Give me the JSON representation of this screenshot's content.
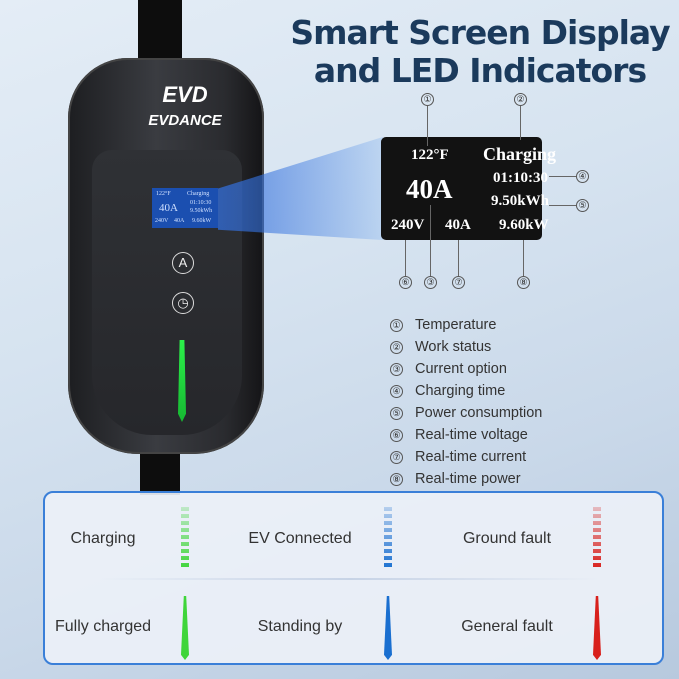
{
  "title": {
    "line1": "Smart Screen Display",
    "line2": "and  LED Indicators"
  },
  "device": {
    "logo_mark": "EVD",
    "logo_text": "EVDANCE",
    "mini_screen": {
      "temp": "122°F",
      "status": "Charging",
      "current": "40A",
      "time": "01:10:30",
      "energy": "9.50kWh",
      "voltage": "240V",
      "rt_current": "40A",
      "power": "9.60kW"
    },
    "button_a": "A",
    "clock_icon": "clock-icon",
    "led_color": "#22e040"
  },
  "screen": {
    "temperature": "122°F",
    "status": "Charging",
    "current_option": "40A",
    "charging_time": "01:10:30",
    "power_consumption": "9.50kWh",
    "voltage": "240V",
    "realtime_current": "40A",
    "realtime_power": "9.60kW"
  },
  "markers": [
    "①",
    "②",
    "③",
    "④",
    "⑤",
    "⑥",
    "⑦",
    "⑧"
  ],
  "legend": [
    {
      "num": "①",
      "label": "Temperature"
    },
    {
      "num": "②",
      "label": "Work status"
    },
    {
      "num": "③",
      "label": "Current option"
    },
    {
      "num": "④",
      "label": "Charging time"
    },
    {
      "num": "⑤",
      "label": "Power consumption"
    },
    {
      "num": "⑥",
      "label": "Real-time voltage"
    },
    {
      "num": "⑦",
      "label": "Real-time current"
    },
    {
      "num": "⑧",
      "label": "Real-time power"
    }
  ],
  "indicators": [
    {
      "label": "Charging",
      "color": "#3fd53a",
      "mode": "flowing"
    },
    {
      "label": "EV Connected",
      "color": "#1a6fd0",
      "mode": "flowing"
    },
    {
      "label": "Ground fault",
      "color": "#d8201c",
      "mode": "flowing"
    },
    {
      "label": "Fully charged",
      "color": "#3fd53a",
      "mode": "solid"
    },
    {
      "label": "Standing by",
      "color": "#1a6fd0",
      "mode": "solid"
    },
    {
      "label": "General fault",
      "color": "#d8201c",
      "mode": "solid"
    }
  ]
}
